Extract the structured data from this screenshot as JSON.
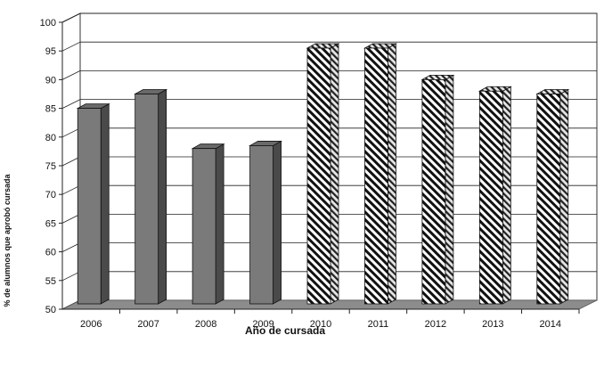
{
  "chart_data": {
    "type": "bar",
    "title": "",
    "xlabel": "Año de cursada",
    "ylabel": "% de alumnos que aprobó cursada",
    "ylim": [
      50,
      100
    ],
    "yticks": [
      50,
      55,
      60,
      65,
      70,
      75,
      80,
      85,
      90,
      95,
      100
    ],
    "grid": true,
    "legend": "none",
    "style": "3d-columns",
    "categories": [
      "2006",
      "2007",
      "2008",
      "2009",
      "2010",
      "2011",
      "2012",
      "2013",
      "2014"
    ],
    "values": [
      85,
      87.5,
      78,
      78.5,
      95.5,
      95.5,
      90,
      88,
      87.5
    ],
    "bar_fills": [
      "solid",
      "solid",
      "solid",
      "solid",
      "hatched",
      "hatched",
      "hatched",
      "hatched",
      "hatched"
    ],
    "colors": {
      "solid_bar": "#7a7a7a",
      "solid_bar_side": "#4a4a4a",
      "floor": "#8c8c8c",
      "grid": "#222222",
      "hatch": "#111111"
    }
  }
}
